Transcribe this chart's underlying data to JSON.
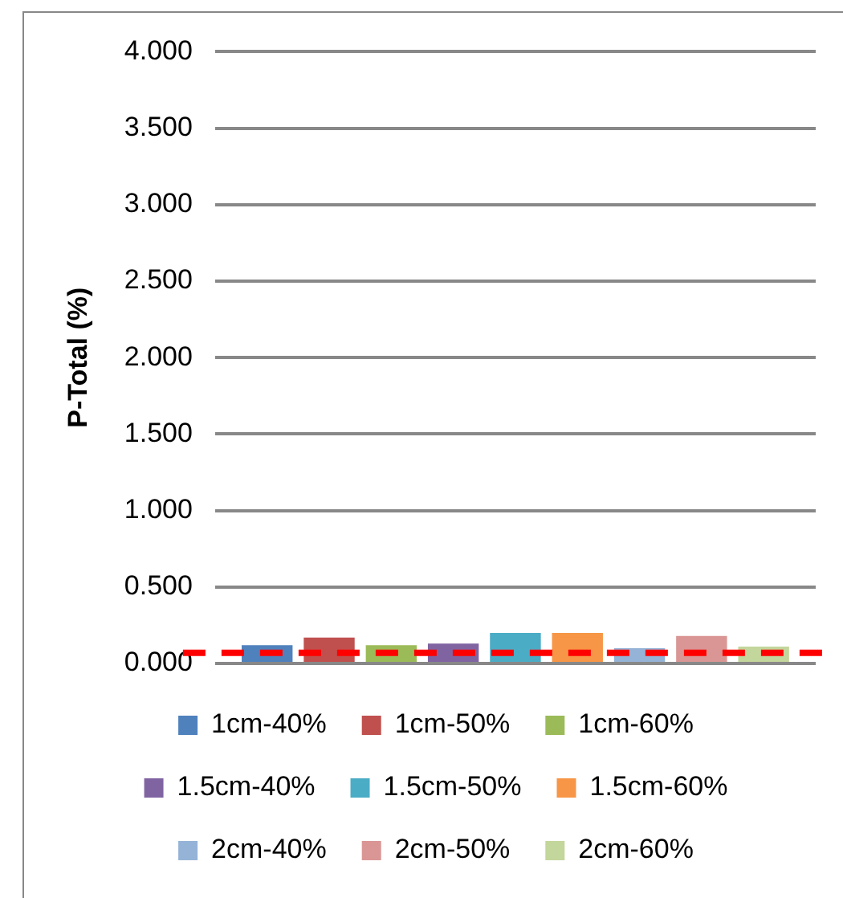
{
  "chart_data": {
    "type": "bar",
    "ylabel": "P-Total (%)",
    "categories": [
      null
    ],
    "series": [
      {
        "name": "1cm-40%",
        "color": "#4f81bd",
        "values": [
          0.12
        ]
      },
      {
        "name": "1cm-50%",
        "color": "#c0504d",
        "values": [
          0.17
        ]
      },
      {
        "name": "1cm-60%",
        "color": "#9bbb59",
        "values": [
          0.12
        ]
      },
      {
        "name": "1.5cm-40%",
        "color": "#8064a2",
        "values": [
          0.13
        ]
      },
      {
        "name": "1.5cm-50%",
        "color": "#4bacc6",
        "values": [
          0.2
        ]
      },
      {
        "name": "1.5cm-60%",
        "color": "#f79646",
        "values": [
          0.2
        ]
      },
      {
        "name": "2cm-40%",
        "color": "#95b3d7",
        "values": [
          0.1
        ]
      },
      {
        "name": "2cm-50%",
        "color": "#d99694",
        "values": [
          0.18
        ]
      },
      {
        "name": "2cm-60%",
        "color": "#c3d69b",
        "values": [
          0.11
        ]
      }
    ],
    "ylim": [
      0,
      4
    ],
    "yticks": [
      {
        "value": 0,
        "label": "0.000"
      },
      {
        "value": 0.5,
        "label": "0.500"
      },
      {
        "value": 1,
        "label": "1.000"
      },
      {
        "value": 1.5,
        "label": "1.500"
      },
      {
        "value": 2,
        "label": "2.000"
      },
      {
        "value": 2.5,
        "label": "2.500"
      },
      {
        "value": 3,
        "label": "3.000"
      },
      {
        "value": 3.5,
        "label": "3.500"
      },
      {
        "value": 4,
        "label": "4.000"
      }
    ],
    "ref_lines": [
      {
        "axis": "y",
        "value": 0.07,
        "label": null,
        "color": "#ff0000",
        "line_style": "dashed"
      }
    ],
    "grid": "y",
    "legend": "bottom"
  }
}
